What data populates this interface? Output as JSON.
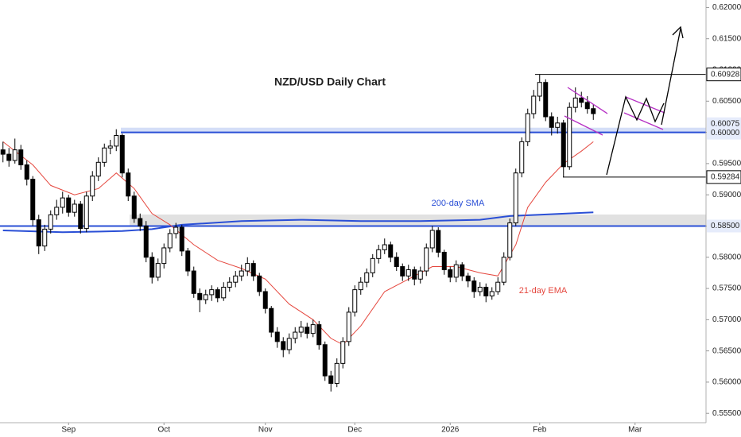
{
  "chart_data": {
    "type": "candlestick",
    "title": "NZD/USD Daily Chart",
    "ohlc": [
      [
        0.5972,
        0.5985,
        0.5952,
        0.5965
      ],
      [
        0.5965,
        0.5975,
        0.5945,
        0.5955
      ],
      [
        0.5955,
        0.599,
        0.595,
        0.5972
      ],
      [
        0.5972,
        0.598,
        0.594,
        0.5948
      ],
      [
        0.5948,
        0.5955,
        0.5915,
        0.5925
      ],
      [
        0.5925,
        0.593,
        0.585,
        0.586
      ],
      [
        0.586,
        0.5868,
        0.5805,
        0.5818
      ],
      [
        0.5818,
        0.5852,
        0.581,
        0.5845
      ],
      [
        0.5845,
        0.5875,
        0.5838,
        0.5868
      ],
      [
        0.5868,
        0.5892,
        0.586,
        0.588
      ],
      [
        0.588,
        0.5905,
        0.587,
        0.5895
      ],
      [
        0.5895,
        0.59,
        0.5865,
        0.5872
      ],
      [
        0.5872,
        0.5892,
        0.5865,
        0.5885
      ],
      [
        0.5885,
        0.589,
        0.5838,
        0.5846
      ],
      [
        0.5846,
        0.5905,
        0.584,
        0.5898
      ],
      [
        0.5898,
        0.5938,
        0.589,
        0.593
      ],
      [
        0.593,
        0.596,
        0.5922,
        0.5952
      ],
      [
        0.5952,
        0.5982,
        0.5945,
        0.5975
      ],
      [
        0.5975,
        0.5988,
        0.5965,
        0.5978
      ],
      [
        0.5978,
        0.6005,
        0.597,
        0.5995
      ],
      [
        0.5995,
        0.5998,
        0.5928,
        0.5935
      ],
      [
        0.5935,
        0.5942,
        0.589,
        0.5898
      ],
      [
        0.5898,
        0.5905,
        0.5855,
        0.5862
      ],
      [
        0.5862,
        0.587,
        0.5842,
        0.585
      ],
      [
        0.585,
        0.5858,
        0.5792,
        0.58
      ],
      [
        0.58,
        0.5808,
        0.5758,
        0.5768
      ],
      [
        0.5768,
        0.5798,
        0.5762,
        0.579
      ],
      [
        0.579,
        0.5822,
        0.5782,
        0.5815
      ],
      [
        0.5815,
        0.5845,
        0.5808,
        0.5838
      ],
      [
        0.5838,
        0.5855,
        0.583,
        0.5848
      ],
      [
        0.5848,
        0.5852,
        0.5802,
        0.581
      ],
      [
        0.581,
        0.5815,
        0.577,
        0.5778
      ],
      [
        0.5778,
        0.5785,
        0.5735,
        0.5742
      ],
      [
        0.5742,
        0.575,
        0.5712,
        0.5732
      ],
      [
        0.5732,
        0.5748,
        0.5725,
        0.574
      ],
      [
        0.574,
        0.5755,
        0.573,
        0.5748
      ],
      [
        0.5748,
        0.5752,
        0.5728,
        0.5735
      ],
      [
        0.5735,
        0.576,
        0.573,
        0.5752
      ],
      [
        0.5752,
        0.5768,
        0.5745,
        0.576
      ],
      [
        0.576,
        0.5778,
        0.5752,
        0.577
      ],
      [
        0.577,
        0.5788,
        0.5762,
        0.5778
      ],
      [
        0.5778,
        0.58,
        0.577,
        0.579
      ],
      [
        0.579,
        0.5795,
        0.5762,
        0.577
      ],
      [
        0.577,
        0.5775,
        0.5738,
        0.5745
      ],
      [
        0.5745,
        0.575,
        0.571,
        0.5718
      ],
      [
        0.5718,
        0.5722,
        0.5672,
        0.568
      ],
      [
        0.568,
        0.5688,
        0.5655,
        0.5665
      ],
      [
        0.5665,
        0.5672,
        0.564,
        0.5652
      ],
      [
        0.5652,
        0.5678,
        0.5645,
        0.567
      ],
      [
        0.567,
        0.5688,
        0.5662,
        0.568
      ],
      [
        0.568,
        0.5698,
        0.5672,
        0.5688
      ],
      [
        0.5688,
        0.5695,
        0.567,
        0.5678
      ],
      [
        0.5678,
        0.57,
        0.5672,
        0.5692
      ],
      [
        0.5692,
        0.5698,
        0.5652,
        0.566
      ],
      [
        0.566,
        0.5665,
        0.5602,
        0.561
      ],
      [
        0.561,
        0.5618,
        0.5585,
        0.5598
      ],
      [
        0.5598,
        0.5638,
        0.5592,
        0.563
      ],
      [
        0.563,
        0.5672,
        0.5622,
        0.5665
      ],
      [
        0.5665,
        0.572,
        0.5658,
        0.5712
      ],
      [
        0.5712,
        0.5755,
        0.5705,
        0.5748
      ],
      [
        0.5748,
        0.5768,
        0.574,
        0.576
      ],
      [
        0.576,
        0.5782,
        0.5752,
        0.5775
      ],
      [
        0.5775,
        0.5805,
        0.5768,
        0.5798
      ],
      [
        0.5798,
        0.582,
        0.579,
        0.5812
      ],
      [
        0.5812,
        0.583,
        0.5805,
        0.582
      ],
      [
        0.582,
        0.5825,
        0.5792,
        0.58
      ],
      [
        0.58,
        0.5808,
        0.5778,
        0.5785
      ],
      [
        0.5785,
        0.579,
        0.5762,
        0.577
      ],
      [
        0.577,
        0.5788,
        0.5762,
        0.578
      ],
      [
        0.578,
        0.5785,
        0.5755,
        0.5765
      ],
      [
        0.5765,
        0.5785,
        0.5758,
        0.5778
      ],
      [
        0.5778,
        0.5822,
        0.577,
        0.5815
      ],
      [
        0.5815,
        0.585,
        0.5808,
        0.5843
      ],
      [
        0.5843,
        0.5848,
        0.58,
        0.5808
      ],
      [
        0.5808,
        0.5812,
        0.5772,
        0.578
      ],
      [
        0.578,
        0.5785,
        0.576,
        0.5768
      ],
      [
        0.5768,
        0.5795,
        0.576,
        0.5788
      ],
      [
        0.5788,
        0.5792,
        0.5762,
        0.577
      ],
      [
        0.577,
        0.5775,
        0.5752,
        0.5762
      ],
      [
        0.5762,
        0.5768,
        0.5735,
        0.5745
      ],
      [
        0.5745,
        0.576,
        0.5738,
        0.5752
      ],
      [
        0.5752,
        0.5758,
        0.5728,
        0.5738
      ],
      [
        0.5738,
        0.5752,
        0.5732,
        0.5745
      ],
      [
        0.5745,
        0.5768,
        0.574,
        0.576
      ],
      [
        0.576,
        0.5808,
        0.5755,
        0.58
      ],
      [
        0.58,
        0.5862,
        0.5795,
        0.5855
      ],
      [
        0.5855,
        0.5942,
        0.585,
        0.5935
      ],
      [
        0.5935,
        0.5992,
        0.5928,
        0.5985
      ],
      [
        0.5985,
        0.6038,
        0.5978,
        0.603
      ],
      [
        0.603,
        0.6068,
        0.6022,
        0.6058
      ],
      [
        0.6058,
        0.6093,
        0.605,
        0.608
      ],
      [
        0.608,
        0.6085,
        0.6018,
        0.6025
      ],
      [
        0.6025,
        0.6032,
        0.5995,
        0.6008
      ],
      [
        0.6008,
        0.6025,
        0.5998,
        0.6015
      ],
      [
        0.6015,
        0.602,
        0.5928,
        0.5945
      ],
      [
        0.5945,
        0.6048,
        0.594,
        0.604
      ],
      [
        0.604,
        0.6072,
        0.6032,
        0.6055
      ],
      [
        0.6055,
        0.6065,
        0.604,
        0.6048
      ],
      [
        0.6048,
        0.6058,
        0.603,
        0.6038
      ],
      [
        0.6038,
        0.6045,
        0.602,
        0.603
      ]
    ],
    "up_color": "#ffffff",
    "down_color": "#000000",
    "lines": [
      {
        "name": "200-day SMA",
        "color": "#2a4fd6",
        "x": [
          0,
          10,
          20,
          25,
          30,
          40,
          50,
          60,
          70,
          80,
          85,
          90,
          99
        ],
        "values": [
          0.5843,
          0.584,
          0.5842,
          0.5845,
          0.5852,
          0.5858,
          0.586,
          0.5858,
          0.5858,
          0.586,
          0.5866,
          0.5868,
          0.5872
        ]
      },
      {
        "name": "21-day EMA",
        "color": "#e5483f",
        "x": [
          0,
          5,
          8,
          12,
          16,
          19,
          22,
          25,
          28,
          32,
          36,
          40,
          44,
          48,
          52,
          55,
          57,
          60,
          64,
          68,
          72,
          76,
          80,
          83,
          86,
          88,
          91,
          94,
          97,
          99
        ],
        "values": [
          0.5985,
          0.5948,
          0.5915,
          0.59,
          0.591,
          0.5935,
          0.591,
          0.587,
          0.5852,
          0.582,
          0.5795,
          0.5782,
          0.5765,
          0.5725,
          0.57,
          0.567,
          0.566,
          0.569,
          0.5745,
          0.5765,
          0.5785,
          0.5785,
          0.5775,
          0.577,
          0.582,
          0.588,
          0.592,
          0.595,
          0.597,
          0.5985
        ]
      }
    ],
    "levels": [
      {
        "value": 0.60928,
        "color": "#000000"
      },
      {
        "value": 0.60075,
        "color": "#2a4fd6"
      },
      {
        "value": 0.6,
        "label": "0.60000",
        "color": "#2a4fd6"
      },
      {
        "value": 0.59284,
        "color": "#000000"
      },
      {
        "value": 0.585,
        "label": "0.58500",
        "color": "#2a4fd6"
      }
    ],
    "xlim": [
      -0.5,
      117.9
    ],
    "xticks": [
      {
        "value": 11,
        "label": "Sep"
      },
      {
        "value": 27,
        "label": "Oct"
      },
      {
        "value": 44,
        "label": "Nov"
      },
      {
        "value": 59,
        "label": "Dec"
      },
      {
        "value": 75,
        "label": "2026"
      },
      {
        "value": 90,
        "label": "Feb"
      },
      {
        "value": 106,
        "label": "Mar"
      }
    ],
    "ylim": [
      0.5535,
      0.6212
    ],
    "yticks": [
      {
        "value": 0.555,
        "label": "0.55500"
      },
      {
        "value": 0.56,
        "label": "0.56000"
      },
      {
        "value": 0.565,
        "label": "0.56500"
      },
      {
        "value": 0.57,
        "label": "0.57000"
      },
      {
        "value": 0.575,
        "label": "0.57500"
      },
      {
        "value": 0.58,
        "label": "0.58000"
      },
      {
        "value": 0.585,
        "label": "0.58500"
      },
      {
        "value": 0.59,
        "label": "0.59000"
      },
      {
        "value": 0.595,
        "label": "0.59500"
      },
      {
        "value": 0.6,
        "label": "0.60000"
      },
      {
        "value": 0.605,
        "label": "0.60500"
      },
      {
        "value": 0.61,
        "label": "0.61000"
      },
      {
        "value": 0.615,
        "label": "0.61500"
      },
      {
        "value": 0.62,
        "label": "0.62000"
      }
    ],
    "grid": false
  }
}
